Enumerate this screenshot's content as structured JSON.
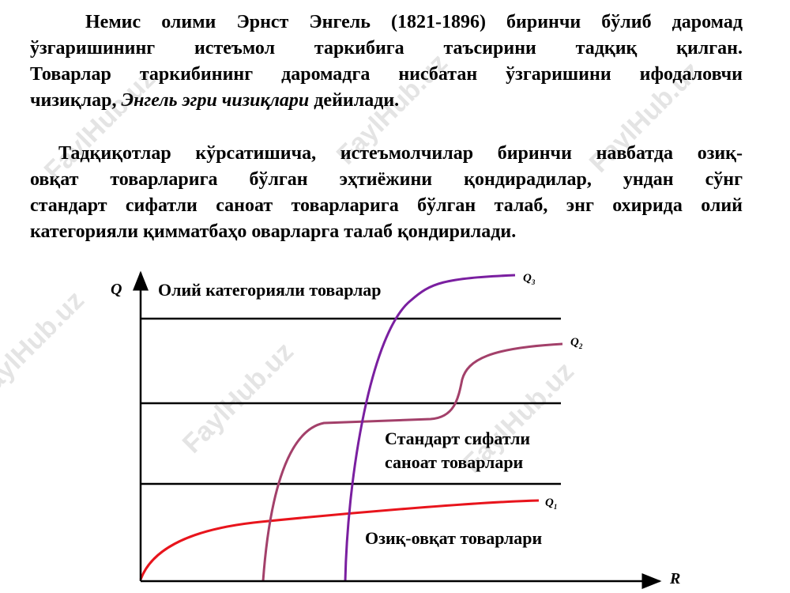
{
  "paragraph_1": {
    "lines": [
      "Немис олими Эрнст Энгель (1821-1896) биринчи бўлиб даромад",
      "ўзгаришининг истеъмол таркибига таъсирини тадқиқ қилган.",
      "Товарлар таркибининг даромадга нисбатан ўзгаришини ифодаловчи"
    ],
    "last_line": {
      "before": "чизиқлар,",
      "italic": "Энгель эгри чизиқлари",
      "after": "дейилади."
    }
  },
  "paragraph_2": {
    "lines": [
      "Тадқиқотлар кўрсатишича, истеъмолчилар биринчи навбатда озиқ-",
      "овқат товарларига бўлган эҳтиёжини қондирадилар, ундан сўнг",
      "стандарт сифатли саноат товарларига бўлган талаб, энг охирида олий"
    ],
    "last_line": "категорияли қимматбаҳо оварларга талаб қондирилади."
  },
  "diagram": {
    "y_axis": "Q",
    "x_axis": "R",
    "zones": {
      "top": "Олий категорияли товарлар",
      "middle": [
        "Стандарт сифатли",
        "саноат товарлари"
      ],
      "bottom": "Озиқ-овқат товарлари"
    },
    "curves": [
      {
        "letter": "Q",
        "sub": "1"
      },
      {
        "letter": "Q",
        "sub": "2"
      },
      {
        "letter": "Q",
        "sub": "3"
      }
    ]
  },
  "watermark": "FaylHub.uz"
}
